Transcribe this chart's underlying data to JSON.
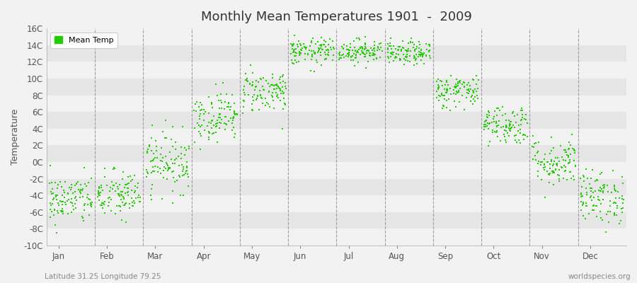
{
  "title": "Monthly Mean Temperatures 1901  -  2009",
  "ylabel": "Temperature",
  "bottom_left_text": "Latitude 31.25 Longitude 79.25",
  "bottom_right_text": "worldspecies.org",
  "legend_label": "Mean Temp",
  "marker_color": "#22CC00",
  "background_color": "#F2F2F2",
  "band_colors": [
    "#F2F2F2",
    "#E6E6E6"
  ],
  "ylim": [
    -10,
    16
  ],
  "yticks": [
    -10,
    -8,
    -6,
    -4,
    -2,
    0,
    2,
    4,
    6,
    8,
    10,
    12,
    14,
    16
  ],
  "ytick_labels": [
    "-10C",
    "-8C",
    "-6C",
    "-4C",
    "-2C",
    "0C",
    "2C",
    "4C",
    "6C",
    "8C",
    "10C",
    "12C",
    "14C",
    "16C"
  ],
  "months": [
    "Jan",
    "Feb",
    "Mar",
    "Apr",
    "May",
    "Jun",
    "Jul",
    "Aug",
    "Sep",
    "Oct",
    "Nov",
    "Dec"
  ],
  "monthly_mean": [
    -4.5,
    -4.0,
    0.0,
    5.5,
    8.5,
    13.2,
    13.3,
    13.0,
    8.5,
    4.5,
    0.0,
    -4.2
  ],
  "monthly_std": [
    1.5,
    1.5,
    1.8,
    1.5,
    1.3,
    0.8,
    0.7,
    0.7,
    1.0,
    1.2,
    1.5,
    1.6
  ],
  "n_years": 109,
  "seed": 42,
  "dot_size": 4
}
